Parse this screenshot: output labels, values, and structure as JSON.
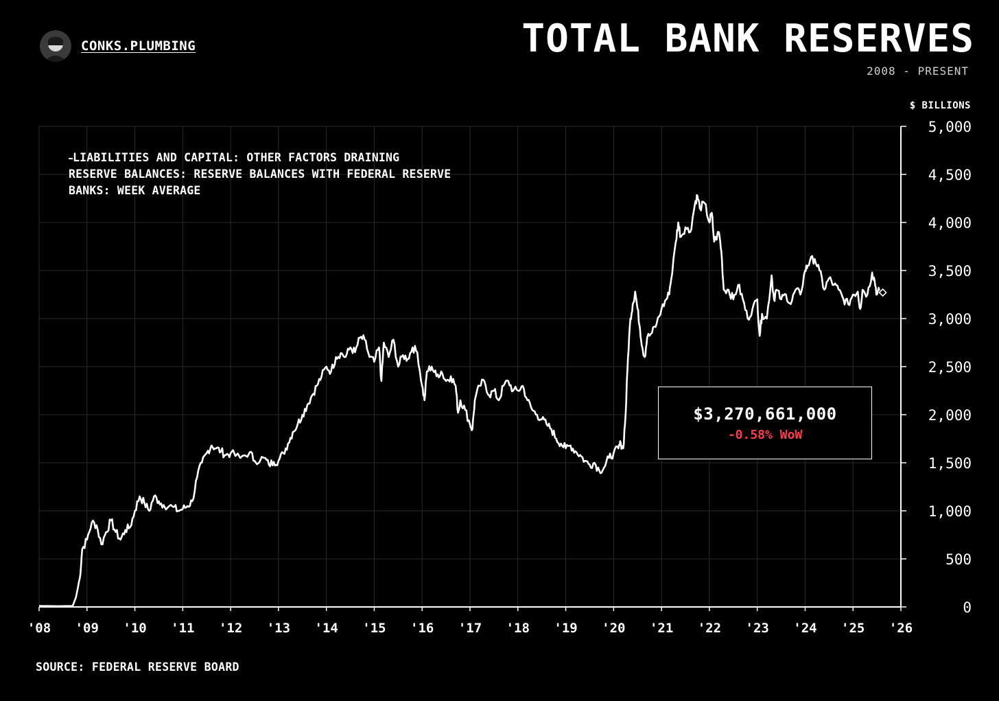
{
  "brand": {
    "name": "CONKS.PLUMBING",
    "icon": "avatar-icon"
  },
  "header": {
    "title": "TOTAL BANK RESERVES",
    "subtitle": "2008 - PRESENT"
  },
  "source": "SOURCE: FEDERAL RESERVE BOARD",
  "callout": {
    "value": "$3,270,661,000",
    "change": "-0.58% WoW",
    "change_color": "#ff3b4e"
  },
  "chart_data": {
    "type": "line",
    "title": "TOTAL BANK RESERVES",
    "subtitle": "2008 - PRESENT",
    "ylabel": "$ BILLIONS",
    "xlabel": "",
    "xlim": [
      2008,
      2026
    ],
    "ylim": [
      0,
      5000
    ],
    "grid": true,
    "legend_position": "top-left",
    "x_ticks": [
      2008,
      2009,
      2010,
      2011,
      2012,
      2013,
      2014,
      2015,
      2016,
      2017,
      2018,
      2019,
      2020,
      2021,
      2022,
      2023,
      2024,
      2025,
      2026
    ],
    "x_tick_labels": [
      "'08",
      "'09",
      "'10",
      "'11",
      "'12",
      "'13",
      "'14",
      "'15",
      "'16",
      "'17",
      "'18",
      "'19",
      "'20",
      "'21",
      "'22",
      "'23",
      "'24",
      "'25",
      "'26"
    ],
    "y_ticks": [
      0,
      500,
      1000,
      1500,
      2000,
      2500,
      3000,
      3500,
      4000,
      4500,
      5000
    ],
    "y_tick_labels": [
      "0",
      "500",
      "1,000",
      "1,500",
      "2,000",
      "2,500",
      "3,000",
      "3,500",
      "4,000",
      "4,500",
      "5,000"
    ],
    "series": [
      {
        "name": "LIABILITIES AND CAPITAL: OTHER FACTORS DRAINING RESERVE BALANCES: RESERVE BALANCES WITH FEDERAL RESERVE BANKS: WEEK AVERAGE",
        "color": "#ffffff",
        "points": [
          [
            2008.0,
            10
          ],
          [
            2008.4,
            8
          ],
          [
            2008.7,
            10
          ],
          [
            2008.77,
            100
          ],
          [
            2008.85,
            300
          ],
          [
            2008.9,
            600
          ],
          [
            2009.0,
            700
          ],
          [
            2009.1,
            880
          ],
          [
            2009.2,
            850
          ],
          [
            2009.3,
            650
          ],
          [
            2009.4,
            780
          ],
          [
            2009.5,
            900
          ],
          [
            2009.6,
            780
          ],
          [
            2009.7,
            700
          ],
          [
            2009.8,
            800
          ],
          [
            2009.9,
            830
          ],
          [
            2010.0,
            1000
          ],
          [
            2010.1,
            1150
          ],
          [
            2010.2,
            1080
          ],
          [
            2010.3,
            1000
          ],
          [
            2010.4,
            1150
          ],
          [
            2010.5,
            1100
          ],
          [
            2010.6,
            1060
          ],
          [
            2010.8,
            1040
          ],
          [
            2010.9,
            1000
          ],
          [
            2011.0,
            1020
          ],
          [
            2011.1,
            1050
          ],
          [
            2011.2,
            1100
          ],
          [
            2011.3,
            1350
          ],
          [
            2011.4,
            1500
          ],
          [
            2011.5,
            1600
          ],
          [
            2011.6,
            1680
          ],
          [
            2011.7,
            1650
          ],
          [
            2011.8,
            1620
          ],
          [
            2011.9,
            1580
          ],
          [
            2012.0,
            1600
          ],
          [
            2012.2,
            1550
          ],
          [
            2012.4,
            1610
          ],
          [
            2012.5,
            1520
          ],
          [
            2012.7,
            1550
          ],
          [
            2012.8,
            1480
          ],
          [
            2012.9,
            1510
          ],
          [
            2013.0,
            1520
          ],
          [
            2013.1,
            1600
          ],
          [
            2013.2,
            1700
          ],
          [
            2013.3,
            1820
          ],
          [
            2013.4,
            1900
          ],
          [
            2013.5,
            2000
          ],
          [
            2013.6,
            2100
          ],
          [
            2013.7,
            2200
          ],
          [
            2013.8,
            2300
          ],
          [
            2013.9,
            2400
          ],
          [
            2014.0,
            2500
          ],
          [
            2014.1,
            2450
          ],
          [
            2014.2,
            2600
          ],
          [
            2014.3,
            2640
          ],
          [
            2014.4,
            2600
          ],
          [
            2014.5,
            2700
          ],
          [
            2014.6,
            2650
          ],
          [
            2014.7,
            2800
          ],
          [
            2014.8,
            2780
          ],
          [
            2014.9,
            2600
          ],
          [
            2015.0,
            2550
          ],
          [
            2015.1,
            2700
          ],
          [
            2015.15,
            2350
          ],
          [
            2015.2,
            2750
          ],
          [
            2015.3,
            2600
          ],
          [
            2015.4,
            2780
          ],
          [
            2015.5,
            2500
          ],
          [
            2015.6,
            2620
          ],
          [
            2015.7,
            2580
          ],
          [
            2015.8,
            2700
          ],
          [
            2015.9,
            2650
          ],
          [
            2016.0,
            2300
          ],
          [
            2016.05,
            2150
          ],
          [
            2016.1,
            2450
          ],
          [
            2016.2,
            2500
          ],
          [
            2016.3,
            2400
          ],
          [
            2016.4,
            2450
          ],
          [
            2016.5,
            2350
          ],
          [
            2016.6,
            2400
          ],
          [
            2016.7,
            2300
          ],
          [
            2016.75,
            2020
          ],
          [
            2016.8,
            2150
          ],
          [
            2016.9,
            2050
          ],
          [
            2017.0,
            1900
          ],
          [
            2017.05,
            1850
          ],
          [
            2017.1,
            2150
          ],
          [
            2017.2,
            2300
          ],
          [
            2017.3,
            2350
          ],
          [
            2017.4,
            2200
          ],
          [
            2017.5,
            2250
          ],
          [
            2017.6,
            2150
          ],
          [
            2017.7,
            2300
          ],
          [
            2017.8,
            2350
          ],
          [
            2017.9,
            2250
          ],
          [
            2018.0,
            2250
          ],
          [
            2018.1,
            2300
          ],
          [
            2018.2,
            2150
          ],
          [
            2018.3,
            2050
          ],
          [
            2018.4,
            2000
          ],
          [
            2018.5,
            1950
          ],
          [
            2018.6,
            1900
          ],
          [
            2018.7,
            1850
          ],
          [
            2018.8,
            1750
          ],
          [
            2018.9,
            1700
          ],
          [
            2019.0,
            1650
          ],
          [
            2019.1,
            1680
          ],
          [
            2019.2,
            1620
          ],
          [
            2019.3,
            1580
          ],
          [
            2019.4,
            1520
          ],
          [
            2019.5,
            1480
          ],
          [
            2019.6,
            1500
          ],
          [
            2019.7,
            1420
          ],
          [
            2019.8,
            1450
          ],
          [
            2019.9,
            1550
          ],
          [
            2020.0,
            1600
          ],
          [
            2020.1,
            1650
          ],
          [
            2020.15,
            1700
          ],
          [
            2020.2,
            1650
          ],
          [
            2020.25,
            2000
          ],
          [
            2020.3,
            2600
          ],
          [
            2020.35,
            3000
          ],
          [
            2020.4,
            3150
          ],
          [
            2020.45,
            3280
          ],
          [
            2020.5,
            3100
          ],
          [
            2020.55,
            2900
          ],
          [
            2020.6,
            2700
          ],
          [
            2020.65,
            2600
          ],
          [
            2020.7,
            2800
          ],
          [
            2020.8,
            2850
          ],
          [
            2020.9,
            2950
          ],
          [
            2021.0,
            3100
          ],
          [
            2021.1,
            3200
          ],
          [
            2021.15,
            3250
          ],
          [
            2021.2,
            3400
          ],
          [
            2021.3,
            3800
          ],
          [
            2021.35,
            4000
          ],
          [
            2021.4,
            3850
          ],
          [
            2021.5,
            3950
          ],
          [
            2021.6,
            3900
          ],
          [
            2021.7,
            4200
          ],
          [
            2021.75,
            4280
          ],
          [
            2021.8,
            4150
          ],
          [
            2021.9,
            4200
          ],
          [
            2022.0,
            4000
          ],
          [
            2022.05,
            4100
          ],
          [
            2022.1,
            3800
          ],
          [
            2022.2,
            3900
          ],
          [
            2022.25,
            3700
          ],
          [
            2022.3,
            3300
          ],
          [
            2022.4,
            3300
          ],
          [
            2022.5,
            3200
          ],
          [
            2022.6,
            3350
          ],
          [
            2022.7,
            3200
          ],
          [
            2022.8,
            3000
          ],
          [
            2022.9,
            3100
          ],
          [
            2023.0,
            3200
          ],
          [
            2023.05,
            2820
          ],
          [
            2023.1,
            3050
          ],
          [
            2023.2,
            3000
          ],
          [
            2023.3,
            3450
          ],
          [
            2023.35,
            3200
          ],
          [
            2023.4,
            3300
          ],
          [
            2023.5,
            3200
          ],
          [
            2023.6,
            3250
          ],
          [
            2023.7,
            3150
          ],
          [
            2023.8,
            3300
          ],
          [
            2023.9,
            3250
          ],
          [
            2024.0,
            3500
          ],
          [
            2024.05,
            3550
          ],
          [
            2024.1,
            3600
          ],
          [
            2024.2,
            3620
          ],
          [
            2024.3,
            3500
          ],
          [
            2024.4,
            3300
          ],
          [
            2024.5,
            3420
          ],
          [
            2024.6,
            3350
          ],
          [
            2024.7,
            3300
          ],
          [
            2024.8,
            3200
          ],
          [
            2024.9,
            3150
          ],
          [
            2025.0,
            3250
          ],
          [
            2025.1,
            3280
          ],
          [
            2025.15,
            3100
          ],
          [
            2025.2,
            3300
          ],
          [
            2025.3,
            3250
          ],
          [
            2025.4,
            3480
          ],
          [
            2025.45,
            3400
          ],
          [
            2025.5,
            3250
          ],
          [
            2025.55,
            3290
          ]
        ],
        "last_value": 3270.661
      }
    ]
  }
}
